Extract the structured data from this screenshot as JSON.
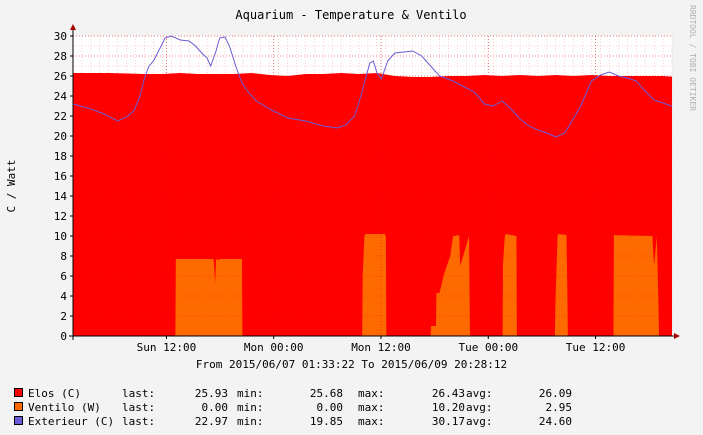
{
  "colors": {
    "background": "#f3f3f3",
    "canvas": "#ffffff",
    "grid_minor": "#ff9b9b",
    "axis": "#000000",
    "arrow": "#a50000",
    "vendor_text": "#b0b0b0"
  },
  "vendor_text": "RRDTOOL / TOBI OETIKER",
  "period_text": "From 2015/06/07 01:33:22 To 2015/06/09 20:28:12",
  "chart_data": {
    "type": "area",
    "title": "Aquarium - Temperature & Ventilo",
    "ylabel": "C / Watt",
    "xlabel": "",
    "ylim": [
      0,
      30
    ],
    "yticks": [
      0,
      2,
      4,
      6,
      8,
      10,
      12,
      14,
      16,
      18,
      20,
      22,
      24,
      26,
      28,
      30
    ],
    "xlim_hours": [
      0,
      67
    ],
    "xticks": [
      {
        "label": "Sun 12:00",
        "hour": 10.45
      },
      {
        "label": "Mon 00:00",
        "hour": 22.45
      },
      {
        "label": "Mon 12:00",
        "hour": 34.45
      },
      {
        "label": "Tue 00:00",
        "hour": 46.45
      },
      {
        "label": "Tue 12:00",
        "hour": 58.45
      }
    ],
    "grid": true,
    "legend_position": "bottom-left",
    "series": [
      {
        "name": "Elos (C)",
        "render": "area",
        "color": "#ff0000",
        "hours": [
          0,
          4,
          8,
          10,
          12,
          14,
          16,
          18,
          20,
          22,
          24,
          26,
          28,
          30,
          32,
          34,
          36,
          38,
          40,
          42,
          44,
          46,
          48,
          50,
          52,
          54,
          56,
          58,
          60,
          62,
          64,
          66,
          67
        ],
        "values": [
          26.3,
          26.3,
          26.2,
          26.2,
          26.3,
          26.2,
          26.2,
          26.2,
          26.3,
          26.1,
          26.0,
          26.2,
          26.2,
          26.3,
          26.2,
          26.3,
          26.0,
          25.9,
          25.9,
          26.0,
          26.0,
          26.1,
          26.0,
          26.1,
          26.0,
          26.1,
          26.0,
          26.1,
          26.0,
          26.0,
          26.0,
          26.0,
          25.93
        ],
        "stats": {
          "last": "25.93",
          "min": "25.68",
          "max": "26.43",
          "avg": "26.09"
        }
      },
      {
        "name": "Ventilo (W)",
        "render": "area",
        "color": "#ff6a00",
        "hours": [
          0,
          11.45,
          11.5,
          15.7,
          15.75,
          15.9,
          16.0,
          16.3,
          16.4,
          18.9,
          18.95,
          32.35,
          32.4,
          32.6,
          32.7,
          34.9,
          35.0,
          35.05,
          40.0,
          40.05,
          40.6,
          40.65,
          41.0,
          41.5,
          42.2,
          42.5,
          42.6,
          43.2,
          43.3,
          44.3,
          44.4,
          48.05,
          48.1,
          48.3,
          48.4,
          49.6,
          49.65,
          53.9,
          53.95,
          54.2,
          54.3,
          55.2,
          55.3,
          55.35,
          60.45,
          60.5,
          64.8,
          65.0,
          65.3,
          65.5,
          65.55,
          67
        ],
        "values": [
          0,
          0,
          7.7,
          7.7,
          7.5,
          5.2,
          7.7,
          7.6,
          7.7,
          7.7,
          0,
          0,
          6.0,
          10.0,
          10.2,
          10.2,
          9.9,
          0,
          0,
          1.0,
          1.0,
          4.3,
          4.3,
          6.2,
          8.0,
          10.0,
          10.0,
          10.1,
          7.0,
          10.0,
          0,
          0,
          7.3,
          10.0,
          10.2,
          10.0,
          0,
          0,
          3.0,
          10.0,
          10.2,
          10.1,
          4.0,
          0,
          0,
          10.1,
          10.0,
          7.0,
          10.0,
          2.7,
          0,
          0
        ],
        "stats": {
          "last": "0.00",
          "min": "0.00",
          "max": "10.20",
          "avg": "2.95"
        }
      },
      {
        "name": "Exterieur (C)",
        "render": "line",
        "color": "#6b5cd6",
        "hours": [
          0,
          2,
          3.5,
          5,
          6,
          6.8,
          7.5,
          8,
          8.5,
          9,
          9.8,
          10.3,
          11,
          12,
          13,
          13.7,
          14.5,
          15,
          15.4,
          16,
          16.4,
          17,
          17.5,
          18.2,
          18.9,
          19.5,
          20.5,
          22,
          24,
          26,
          28,
          29.5,
          30.5,
          31.5,
          32.2,
          32.8,
          33.2,
          33.6,
          34.0,
          34.5,
          35.2,
          36,
          37,
          38,
          39,
          40,
          41,
          42.5,
          44,
          45,
          46,
          47,
          48,
          49,
          50,
          51,
          52,
          53,
          54,
          55,
          56,
          56.8,
          57.5,
          58,
          59,
          60,
          61,
          62,
          63,
          64,
          65,
          66,
          67
        ],
        "values": [
          23.2,
          22.7,
          22.2,
          21.5,
          21.9,
          22.5,
          24.0,
          25.8,
          27.0,
          27.5,
          28.9,
          29.8,
          30.0,
          29.6,
          29.5,
          29.0,
          28.2,
          27.8,
          27.0,
          28.5,
          29.8,
          29.9,
          29.0,
          27.0,
          25.3,
          24.5,
          23.5,
          22.7,
          21.8,
          21.5,
          21.0,
          20.8,
          21.1,
          22.0,
          24.0,
          26.0,
          27.3,
          27.5,
          26.3,
          25.7,
          27.5,
          28.3,
          28.4,
          28.5,
          28.0,
          27.0,
          26.0,
          25.5,
          24.8,
          24.3,
          23.2,
          23.0,
          23.5,
          22.7,
          21.7,
          21.0,
          20.6,
          20.3,
          19.9,
          20.3,
          21.8,
          23.0,
          24.5,
          25.5,
          26.1,
          26.4,
          26.0,
          25.8,
          25.5,
          24.5,
          23.6,
          23.3,
          22.97
        ],
        "stats": {
          "last": "22.97",
          "min": "19.85",
          "max": "30.17",
          "avg": "24.60"
        }
      }
    ]
  },
  "legend": {
    "labels": {
      "last": "last:",
      "min": "min:",
      "max": "max:",
      "avg": "avg:"
    }
  }
}
